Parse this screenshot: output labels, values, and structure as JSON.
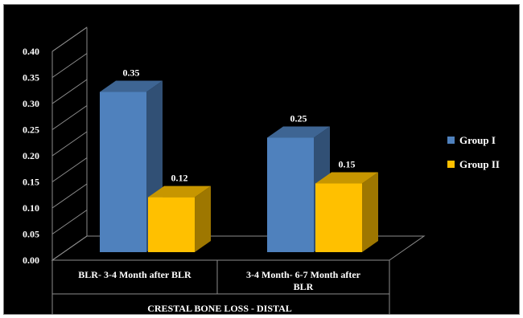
{
  "chart_data": {
    "type": "bar",
    "categories": [
      "BLR- 3-4 Month after BLR",
      "3-4 Month- 6-7 Month after BLR"
    ],
    "category_lines": [
      [
        "BLR- 3-4 Month after BLR"
      ],
      [
        "3-4 Month- 6-7 Month after",
        "BLR"
      ]
    ],
    "series": [
      {
        "name": "Group I",
        "values": [
          0.35,
          0.25
        ],
        "labels": [
          "0.35",
          "0.25"
        ],
        "color": "#4f81bd"
      },
      {
        "name": "Group II",
        "values": [
          0.12,
          0.15
        ],
        "labels": [
          "0.12",
          "0.15"
        ],
        "color": "#ffc000"
      }
    ],
    "xlabel": "CRESTAL BONE LOSS - DISTAL",
    "ylabel": "",
    "ylim": [
      0,
      0.4
    ],
    "yticks": [
      "0.00",
      "0.05",
      "0.10",
      "0.15",
      "0.20",
      "0.25",
      "0.30",
      "0.35",
      "0.40"
    ],
    "grid": false,
    "legend_position": "right",
    "style": "3d-clustered-column",
    "background": "#000000"
  }
}
